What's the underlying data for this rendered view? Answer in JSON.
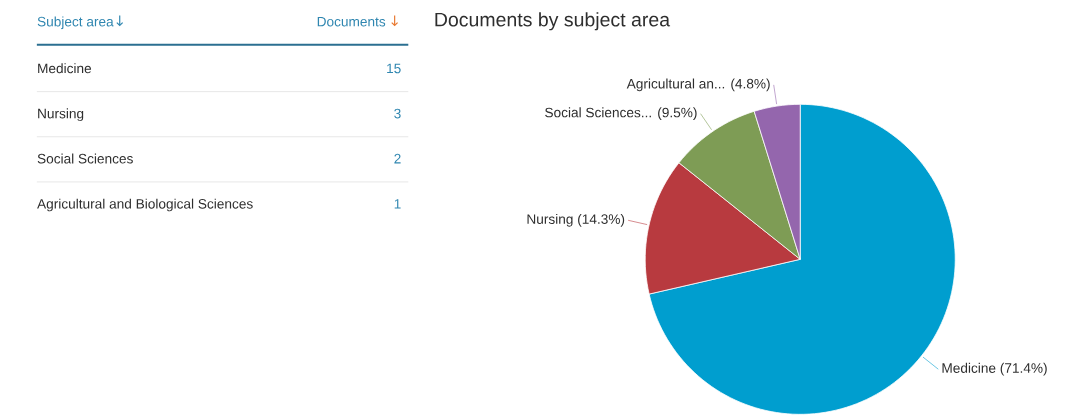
{
  "chart_data": [
    {
      "type": "other",
      "categories": [
        "Medicine",
        "Nursing",
        "Social Sciences",
        "Agricultural and Biological Sciences"
      ],
      "values": [
        15,
        3,
        2,
        1
      ],
      "data_labels": true,
      "annotations": [
        "Subject area",
        "Documents"
      ]
    },
    {
      "type": "pie",
      "title": "Documents by subject area",
      "categories": [
        "Medicine",
        "Nursing",
        "Social Sciences...",
        "Agricultural an..."
      ],
      "values": [
        71.4,
        14.3,
        9.5,
        4.8
      ],
      "colors": [
        "#009ecf",
        "#b83a3f",
        "#7e9c55",
        "#9466ad"
      ],
      "value_labels": [
        "(71.4%)",
        "(14.3%)",
        "(9.5%)",
        "(4.8%)"
      ]
    }
  ]
}
